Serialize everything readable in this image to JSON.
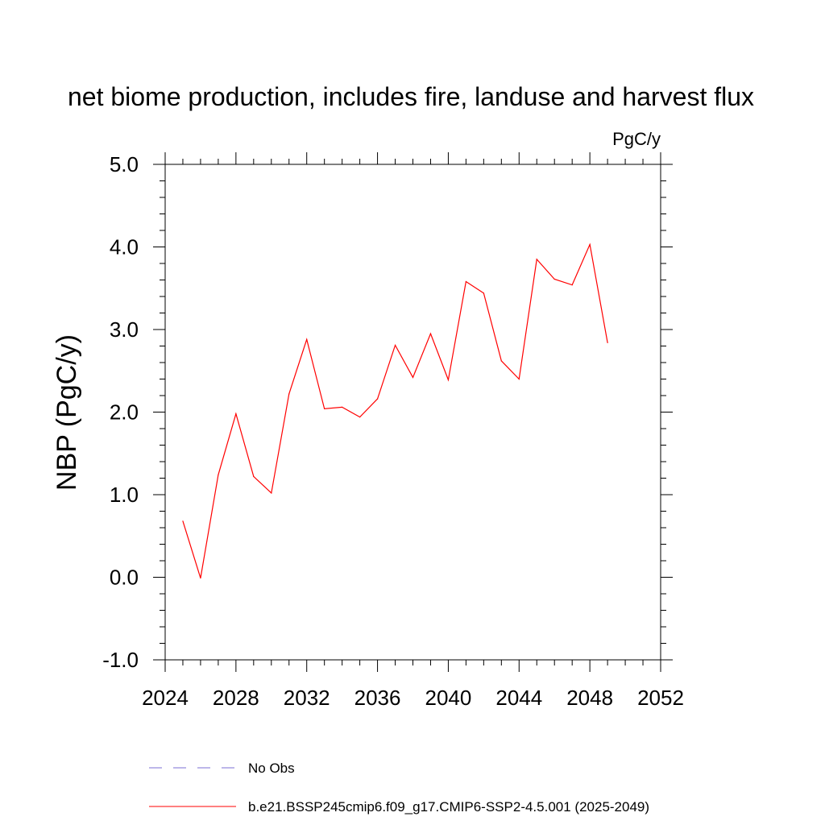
{
  "chart_data": {
    "type": "line",
    "title": "net biome production, includes fire, landuse and harvest flux",
    "units_label": "PgC/y",
    "ylabel": "NBP  (PgC/y)",
    "xlabel": "",
    "xlim": [
      2024,
      2052
    ],
    "ylim": [
      -1.0,
      5.0
    ],
    "x_ticks": [
      2024,
      2028,
      2032,
      2036,
      2040,
      2044,
      2048,
      2052
    ],
    "y_ticks": [
      -1.0,
      0.0,
      1.0,
      2.0,
      3.0,
      4.0,
      5.0
    ],
    "y_tick_labels": [
      "-1.0",
      "0.0",
      "1.0",
      "2.0",
      "3.0",
      "4.0",
      "5.0"
    ],
    "grid": false,
    "series": [
      {
        "name": "b.e21.BSSP245cmip6.f09_g17.CMIP6-SSP2-4.5.001 (2025-2049)",
        "color": "#ff0000",
        "style": "solid",
        "x": [
          2025,
          2026,
          2027,
          2028,
          2029,
          2030,
          2031,
          2032,
          2033,
          2034,
          2035,
          2036,
          2037,
          2038,
          2039,
          2040,
          2041,
          2042,
          2043,
          2044,
          2045,
          2046,
          2047,
          2048,
          2049
        ],
        "values": [
          0.68,
          -0.01,
          1.24,
          1.98,
          1.22,
          1.02,
          2.22,
          2.88,
          2.04,
          2.06,
          1.94,
          2.16,
          2.81,
          2.42,
          2.95,
          2.39,
          3.58,
          3.44,
          2.62,
          2.4,
          3.85,
          3.61,
          3.54,
          4.03,
          2.84
        ]
      }
    ],
    "legend": [
      {
        "label": "No Obs",
        "color": "#7b6fd6",
        "style": "dashed"
      },
      {
        "label": "b.e21.BSSP245cmip6.f09_g17.CMIP6-SSP2-4.5.001 (2025-2049)",
        "color": "#ff0000",
        "style": "solid"
      }
    ],
    "legend_position": "bottom"
  }
}
